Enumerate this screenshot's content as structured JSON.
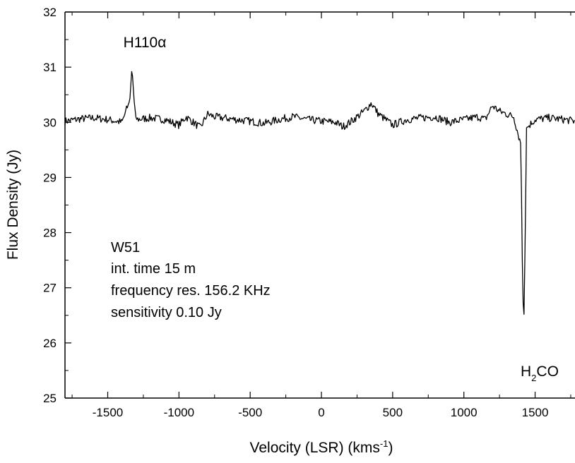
{
  "chart_data": {
    "type": "line",
    "title": "",
    "xlabel": "Velocity (LSR) (kms",
    "xlabel_sup": "-1",
    "xlabel_tail": ")",
    "ylabel": "Flux Density (Jy)",
    "xlim": [
      -1800,
      1780
    ],
    "ylim": [
      25,
      32
    ],
    "x_ticks": [
      -1500,
      -1000,
      -500,
      0,
      500,
      1000,
      1500
    ],
    "x_tick_labels": [
      "-1500",
      "-1000",
      "-500",
      "0",
      "500",
      "1000",
      "1500"
    ],
    "y_ticks": [
      25,
      26,
      27,
      28,
      29,
      30,
      31,
      32
    ],
    "y_tick_labels": [
      "25",
      "26",
      "27",
      "28",
      "29",
      "30",
      "31",
      "32"
    ],
    "grid": false,
    "legend": "none",
    "series": [
      {
        "baseline": 30.03,
        "x": [
          -1800,
          -1700,
          -1600,
          -1500,
          -1400,
          -1345,
          -1330,
          -1315,
          -1300,
          -1200,
          -1100,
          -1000,
          -950,
          -850,
          -800,
          -750,
          -600,
          -500,
          -400,
          -300,
          -200,
          -100,
          0,
          100,
          150,
          200,
          300,
          350,
          400,
          500,
          600,
          700,
          800,
          900,
          1000,
          1100,
          1150,
          1200,
          1250,
          1300,
          1350,
          1400,
          1410,
          1420,
          1430,
          1440,
          1500,
          1600,
          1700,
          1780
        ],
        "y": [
          30.02,
          30.06,
          30.08,
          30.05,
          30.0,
          30.4,
          31.0,
          30.4,
          30.05,
          30.08,
          30.05,
          29.95,
          30.1,
          29.9,
          30.15,
          30.1,
          30.05,
          30.02,
          29.98,
          30.05,
          30.1,
          30.05,
          30.02,
          30.0,
          29.92,
          30.0,
          30.2,
          30.35,
          30.15,
          29.95,
          30.05,
          30.08,
          30.1,
          30.0,
          30.05,
          30.1,
          30.05,
          30.3,
          30.2,
          30.15,
          30.1,
          29.6,
          27.5,
          26.2,
          27.8,
          29.9,
          30.05,
          30.08,
          30.05,
          30.02
        ]
      }
    ],
    "annotations": {
      "peak1": "H110α",
      "peak2_main": "H",
      "peak2_sub": "2",
      "peak2_tail": "CO",
      "info": [
        "W51",
        "int. time 15 m",
        "frequency res. 156.2 KHz",
        "sensitivity 0.10 Jy"
      ]
    }
  }
}
